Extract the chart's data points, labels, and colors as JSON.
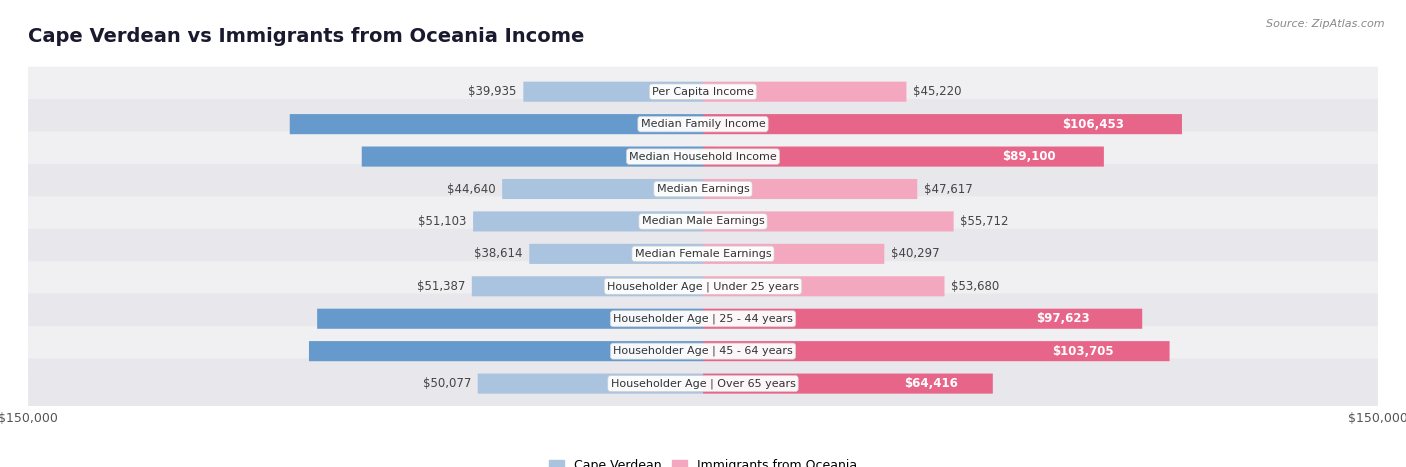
{
  "title": "Cape Verdean vs Immigrants from Oceania Income",
  "source": "Source: ZipAtlas.com",
  "categories": [
    "Per Capita Income",
    "Median Family Income",
    "Median Household Income",
    "Median Earnings",
    "Median Male Earnings",
    "Median Female Earnings",
    "Householder Age | Under 25 years",
    "Householder Age | 25 - 44 years",
    "Householder Age | 45 - 64 years",
    "Householder Age | Over 65 years"
  ],
  "cape_verdean": [
    39935,
    91848,
    75848,
    44640,
    51103,
    38614,
    51387,
    85758,
    87580,
    50077
  ],
  "oceania": [
    45220,
    106453,
    89100,
    47617,
    55712,
    40297,
    53680,
    97623,
    103705,
    64416
  ],
  "max_value": 150000,
  "color_cv_light": "#aac4e0",
  "color_cv_dark": "#6699cc",
  "color_oc_light": "#f4a8c0",
  "color_oc_dark": "#e8658a",
  "row_bg": "#f0f0f2",
  "row_bg_alt": "#e8e8ec",
  "label_dark": "#444444",
  "label_white": "#ffffff",
  "cv_white_threshold": 60000,
  "oc_white_threshold": 60000,
  "title_fontsize": 14,
  "label_fontsize": 8.5,
  "category_fontsize": 8,
  "legend_fontsize": 9,
  "source_fontsize": 8
}
